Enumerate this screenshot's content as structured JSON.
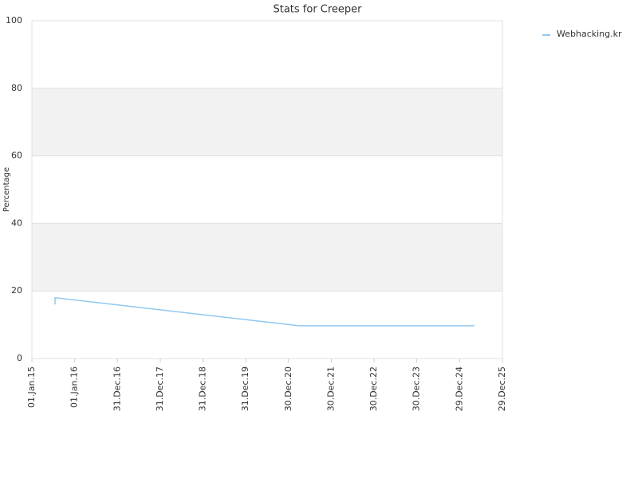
{
  "chart_data": {
    "type": "line",
    "title": "Stats for Creeper",
    "y_label": "Percentage",
    "xlim": [
      "2015-01-01",
      "2025-12-29"
    ],
    "xticks": [
      {
        "value": "2015-01-01",
        "label": "01.Jan.15"
      },
      {
        "value": "2016-01-01",
        "label": "01.Jan.16"
      },
      {
        "value": "2016-12-31",
        "label": "31.Dec.16"
      },
      {
        "value": "2017-12-31",
        "label": "31.Dec.17"
      },
      {
        "value": "2018-12-31",
        "label": "31.Dec.18"
      },
      {
        "value": "2019-12-31",
        "label": "31.Dec.19"
      },
      {
        "value": "2020-12-30",
        "label": "30.Dec.20"
      },
      {
        "value": "2021-12-30",
        "label": "30.Dec.21"
      },
      {
        "value": "2022-12-30",
        "label": "30.Dec.22"
      },
      {
        "value": "2023-12-30",
        "label": "30.Dec.23"
      },
      {
        "value": "2024-12-29",
        "label": "29.Dec.24"
      },
      {
        "value": "2025-12-29",
        "label": "29.Dec.25"
      }
    ],
    "ylim": [
      0,
      100
    ],
    "yticks": [
      0,
      20,
      40,
      60,
      80,
      100
    ],
    "grid": true,
    "legend": "upper right",
    "series": [
      {
        "name": "Webhacking.kr",
        "color": "#90c8f0",
        "x": [
          "2015-07-17",
          "2015-07-18",
          "2021-03-29",
          "2025-05-04"
        ],
        "values": [
          16,
          18,
          9.7,
          9.7
        ]
      }
    ]
  }
}
